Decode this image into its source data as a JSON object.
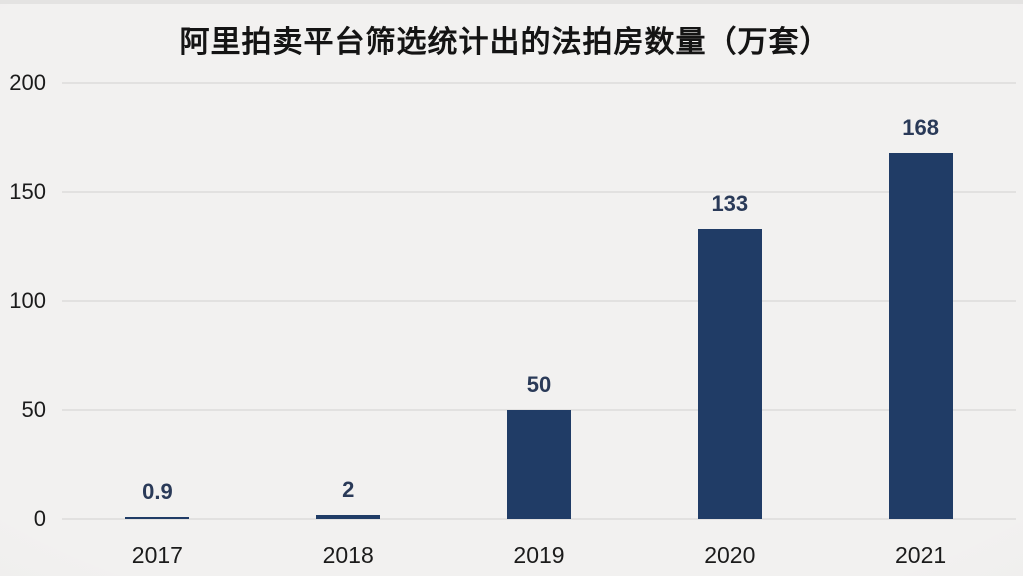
{
  "chart_data": {
    "type": "bar",
    "title": "阿里拍卖平台筛选统计出的法拍房数量（万套）",
    "categories": [
      "2017",
      "2018",
      "2019",
      "2020",
      "2021"
    ],
    "values": [
      0.9,
      2,
      50,
      133,
      168
    ],
    "value_labels": [
      "0.9",
      "2",
      "50",
      "133",
      "168"
    ],
    "xlabel": "",
    "ylabel": "",
    "ylim": [
      0,
      200
    ],
    "yticks": [
      0,
      50,
      100,
      150,
      200
    ],
    "grid": true,
    "legend_position": "none",
    "colors": {
      "bar": "#203c66",
      "value_label": "#2a3a58",
      "axis_text": "#1b1b1b",
      "gridline": "#e2e1e0",
      "background": "#f2f1f0",
      "title_text": "#141414"
    }
  }
}
